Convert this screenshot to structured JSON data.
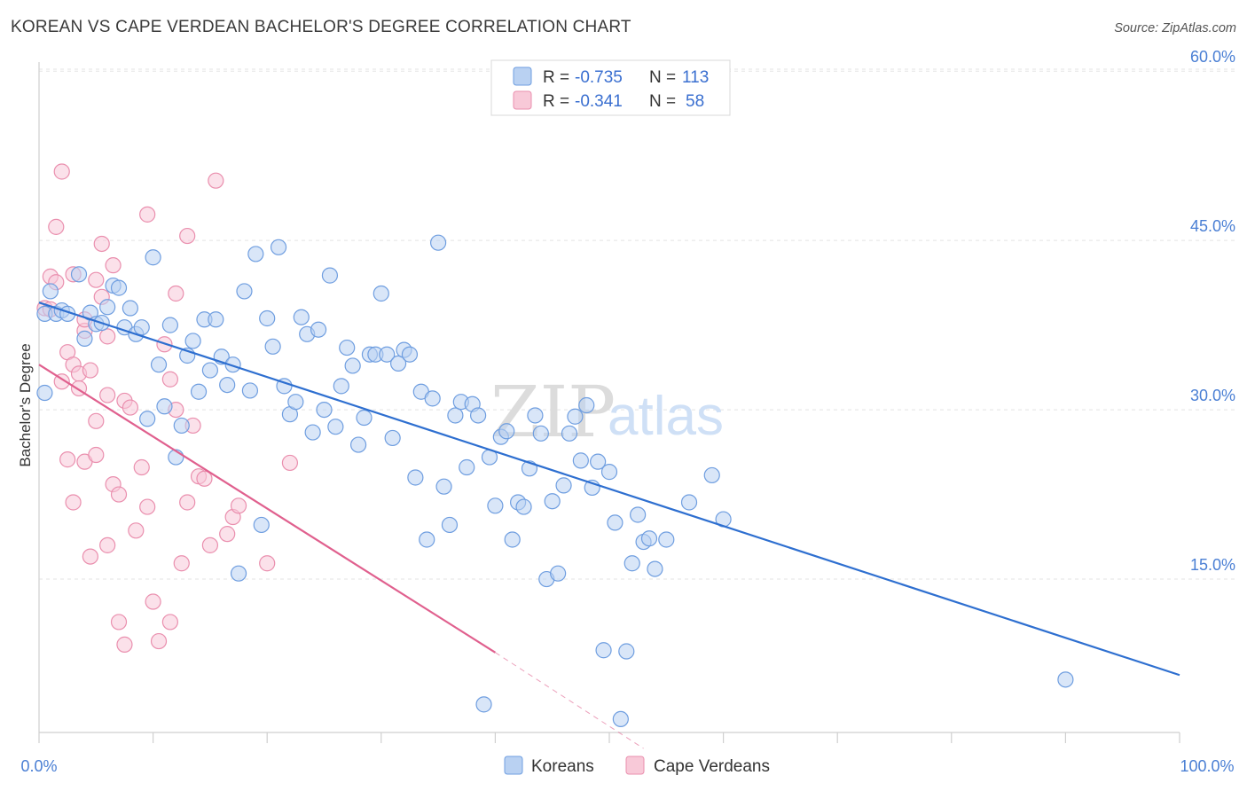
{
  "title": "KOREAN VS CAPE VERDEAN BACHELOR'S DEGREE CORRELATION CHART",
  "source": "Source: ZipAtlas.com",
  "watermark": {
    "zip": "ZIP",
    "atlas": "atlas"
  },
  "legend_box": [
    {
      "r_label": "R =",
      "r_value": "-0.735",
      "n_label": "N =",
      "n_value": "113"
    },
    {
      "r_label": "R =",
      "r_value": "-0.341",
      "n_label": "N =",
      "n_value": "58"
    }
  ],
  "colors": {
    "koreans_fill": "#b9d1f2",
    "koreans_stroke": "#6f9ee0",
    "koreans_line": "#2e6fd0",
    "capeverdean_fill": "#f8c9d8",
    "capeverdean_stroke": "#ea8fae",
    "capeverdean_line": "#e0608e"
  },
  "chart_data": {
    "type": "scatter",
    "title": "KOREAN VS CAPE VERDEAN BACHELOR'S DEGREE CORRELATION CHART",
    "xlabel": "",
    "ylabel": "Bachelor's Degree",
    "xlim": [
      0,
      100
    ],
    "ylim": [
      0,
      63
    ],
    "x_tick_labels": [
      "0.0%",
      "100.0%"
    ],
    "y_ticks": [
      15,
      30,
      45,
      60
    ],
    "y_tick_labels": [
      "15.0%",
      "30.0%",
      "45.0%",
      "60.0%"
    ],
    "grid": true,
    "legend_position": "bottom",
    "series": [
      {
        "name": "Koreans",
        "r": -0.735,
        "n": 113,
        "trend": {
          "x": [
            0,
            100
          ],
          "y": [
            39.5,
            6.5
          ]
        },
        "points": [
          [
            0.5,
            38.5
          ],
          [
            0.5,
            31.5
          ],
          [
            1.0,
            40.5
          ],
          [
            1.5,
            38.5
          ],
          [
            2.0,
            38.8
          ],
          [
            2.5,
            38.5
          ],
          [
            3.5,
            42.0
          ],
          [
            4.0,
            36.3
          ],
          [
            4.5,
            38.6
          ],
          [
            5.0,
            37.6
          ],
          [
            5.5,
            37.7
          ],
          [
            6.0,
            39.1
          ],
          [
            6.5,
            41.0
          ],
          [
            7.0,
            40.8
          ],
          [
            7.5,
            37.3
          ],
          [
            8.0,
            39.0
          ],
          [
            8.5,
            36.7
          ],
          [
            9.0,
            37.3
          ],
          [
            9.5,
            29.2
          ],
          [
            10.0,
            43.5
          ],
          [
            10.5,
            34.0
          ],
          [
            11.0,
            30.3
          ],
          [
            11.5,
            37.5
          ],
          [
            12.0,
            25.8
          ],
          [
            12.5,
            28.6
          ],
          [
            13.0,
            34.8
          ],
          [
            13.5,
            36.1
          ],
          [
            14.0,
            31.6
          ],
          [
            14.5,
            38.0
          ],
          [
            15.0,
            33.5
          ],
          [
            15.5,
            38.0
          ],
          [
            16.0,
            34.7
          ],
          [
            16.5,
            32.2
          ],
          [
            17.0,
            34.0
          ],
          [
            17.5,
            15.5
          ],
          [
            18.0,
            40.5
          ],
          [
            18.5,
            31.7
          ],
          [
            19.0,
            43.8
          ],
          [
            19.5,
            19.8
          ],
          [
            20.0,
            38.1
          ],
          [
            20.5,
            35.6
          ],
          [
            21.0,
            44.4
          ],
          [
            21.5,
            32.1
          ],
          [
            22.0,
            29.6
          ],
          [
            22.5,
            30.7
          ],
          [
            23.0,
            38.2
          ],
          [
            23.5,
            36.7
          ],
          [
            24.0,
            28.0
          ],
          [
            24.5,
            37.1
          ],
          [
            25.0,
            30.0
          ],
          [
            25.5,
            41.9
          ],
          [
            26.0,
            28.5
          ],
          [
            26.5,
            32.1
          ],
          [
            27.0,
            35.5
          ],
          [
            27.5,
            33.9
          ],
          [
            28.0,
            26.9
          ],
          [
            28.5,
            29.3
          ],
          [
            29.0,
            34.9
          ],
          [
            29.5,
            34.9
          ],
          [
            30.0,
            40.3
          ],
          [
            30.5,
            34.9
          ],
          [
            31.0,
            27.5
          ],
          [
            31.5,
            34.1
          ],
          [
            32.0,
            35.3
          ],
          [
            32.5,
            34.9
          ],
          [
            33.0,
            24.0
          ],
          [
            33.5,
            31.6
          ],
          [
            34.0,
            18.5
          ],
          [
            34.5,
            31.0
          ],
          [
            35.0,
            44.8
          ],
          [
            35.5,
            23.2
          ],
          [
            36.0,
            19.8
          ],
          [
            36.5,
            29.5
          ],
          [
            37.0,
            30.7
          ],
          [
            37.5,
            24.9
          ],
          [
            38.0,
            30.5
          ],
          [
            38.5,
            29.5
          ],
          [
            39.0,
            3.9
          ],
          [
            39.5,
            25.8
          ],
          [
            40.0,
            21.5
          ],
          [
            40.5,
            27.6
          ],
          [
            41.0,
            28.1
          ],
          [
            41.5,
            18.5
          ],
          [
            42.0,
            21.8
          ],
          [
            42.5,
            21.4
          ],
          [
            43.0,
            24.8
          ],
          [
            43.5,
            29.5
          ],
          [
            44.0,
            27.9
          ],
          [
            44.5,
            15.0
          ],
          [
            45.0,
            21.9
          ],
          [
            45.5,
            15.5
          ],
          [
            46.0,
            23.3
          ],
          [
            46.5,
            27.9
          ],
          [
            47.0,
            29.4
          ],
          [
            47.5,
            25.5
          ],
          [
            48.0,
            30.4
          ],
          [
            48.5,
            23.1
          ],
          [
            49.0,
            25.4
          ],
          [
            49.5,
            8.7
          ],
          [
            50.0,
            24.5
          ],
          [
            50.5,
            20.0
          ],
          [
            51.0,
            2.6
          ],
          [
            51.5,
            8.6
          ],
          [
            52.0,
            16.4
          ],
          [
            52.5,
            20.7
          ],
          [
            53.0,
            18.3
          ],
          [
            53.5,
            18.6
          ],
          [
            54.0,
            15.9
          ],
          [
            55.0,
            18.5
          ],
          [
            57.0,
            21.8
          ],
          [
            59.0,
            24.2
          ],
          [
            60.0,
            20.3
          ],
          [
            90.0,
            6.1
          ]
        ]
      },
      {
        "name": "Cape Verdeans",
        "r": -0.341,
        "n": 58,
        "trend": {
          "x": [
            0,
            40
          ],
          "y": [
            34.0,
            8.5
          ]
        },
        "trend_dashed": {
          "x": [
            40,
            53
          ],
          "y": [
            8.5,
            0
          ]
        },
        "points": [
          [
            0.5,
            39.0
          ],
          [
            1.0,
            41.8
          ],
          [
            1.0,
            38.9
          ],
          [
            1.5,
            46.2
          ],
          [
            1.5,
            41.3
          ],
          [
            2.0,
            51.1
          ],
          [
            2.0,
            32.5
          ],
          [
            2.5,
            35.1
          ],
          [
            2.5,
            25.6
          ],
          [
            3.0,
            34.0
          ],
          [
            3.0,
            21.8
          ],
          [
            3.5,
            33.2
          ],
          [
            3.5,
            31.9
          ],
          [
            4.0,
            37.0
          ],
          [
            4.0,
            25.4
          ],
          [
            4.5,
            33.5
          ],
          [
            4.5,
            17.0
          ],
          [
            5.0,
            41.5
          ],
          [
            5.0,
            26.0
          ],
          [
            5.5,
            44.7
          ],
          [
            5.5,
            40.0
          ],
          [
            6.0,
            31.3
          ],
          [
            6.0,
            18.0
          ],
          [
            6.5,
            42.8
          ],
          [
            6.5,
            23.4
          ],
          [
            7.0,
            22.5
          ],
          [
            7.0,
            11.2
          ],
          [
            7.5,
            30.8
          ],
          [
            7.5,
            9.2
          ],
          [
            8.0,
            30.2
          ],
          [
            8.5,
            19.3
          ],
          [
            9.0,
            24.9
          ],
          [
            9.5,
            47.3
          ],
          [
            9.5,
            21.4
          ],
          [
            10.0,
            13.0
          ],
          [
            10.5,
            9.5
          ],
          [
            11.0,
            35.8
          ],
          [
            11.5,
            32.7
          ],
          [
            11.5,
            11.2
          ],
          [
            12.0,
            40.3
          ],
          [
            12.5,
            16.4
          ],
          [
            13.0,
            45.4
          ],
          [
            13.0,
            21.8
          ],
          [
            13.5,
            28.6
          ],
          [
            14.0,
            24.1
          ],
          [
            14.5,
            23.9
          ],
          [
            15.0,
            18.0
          ],
          [
            15.5,
            50.3
          ],
          [
            16.5,
            19.0
          ],
          [
            17.0,
            20.5
          ],
          [
            17.5,
            21.5
          ],
          [
            20.0,
            16.4
          ],
          [
            22.0,
            25.3
          ],
          [
            3.0,
            42.0
          ],
          [
            4.0,
            38.0
          ],
          [
            6.0,
            36.5
          ],
          [
            5.0,
            29.0
          ],
          [
            12.0,
            30.0
          ]
        ]
      }
    ]
  }
}
